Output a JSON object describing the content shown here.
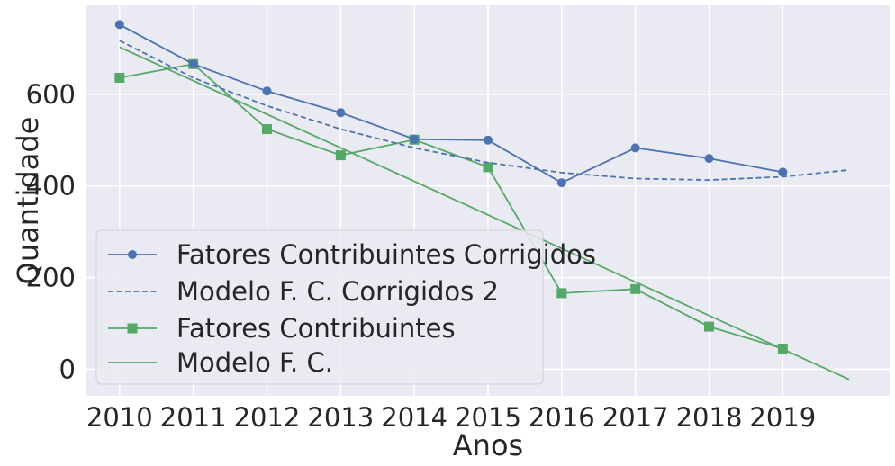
{
  "chart_data": {
    "type": "line",
    "title": "",
    "xlabel": "Anos",
    "ylabel": "Quantidade",
    "x_ticks": [
      "2010",
      "2011",
      "2012",
      "2013",
      "2014",
      "2015",
      "2016",
      "2017",
      "2018",
      "2019"
    ],
    "y_ticks": [
      "0",
      "200",
      "400",
      "600"
    ],
    "xlim": [
      2009.55,
      2020.45
    ],
    "ylim": [
      -58,
      794
    ],
    "grid": true,
    "background": "#EAEAF2",
    "legend_position": "lower-left",
    "series": [
      {
        "name": "Fatores Contribuintes Corrigidos",
        "style": "solid",
        "marker": "circle",
        "color": "#4C72B0",
        "x": [
          2010,
          2011,
          2012,
          2013,
          2014,
          2015,
          2016,
          2017,
          2018,
          2019
        ],
        "y": [
          752,
          666,
          607,
          560,
          502,
          500,
          407,
          483,
          460,
          430
        ]
      },
      {
        "name": "Modelo F. C. Corrigidos 2",
        "style": "dashed",
        "marker": "none",
        "color": "#4C72B0",
        "x": [
          2010,
          2011,
          2012,
          2013,
          2014,
          2015,
          2016,
          2017,
          2018,
          2019,
          2019.9
        ],
        "y": [
          717,
          636,
          575,
          524,
          483,
          451,
          429,
          416,
          413,
          420,
          435
        ]
      },
      {
        "name": "Fatores Contribuintes",
        "style": "solid",
        "marker": "square",
        "color": "#55A868",
        "x": [
          2010,
          2011,
          2012,
          2013,
          2014,
          2015,
          2016,
          2017,
          2018,
          2019
        ],
        "y": [
          636,
          666,
          524,
          467,
          501,
          441,
          166,
          175,
          93,
          45
        ]
      },
      {
        "name": "Modelo F. C.",
        "style": "solid",
        "marker": "none",
        "color": "#55A868",
        "x": [
          2010,
          2019.9
        ],
        "y": [
          703,
          -22
        ]
      }
    ]
  }
}
